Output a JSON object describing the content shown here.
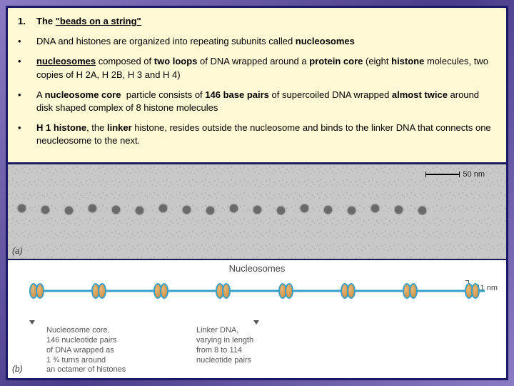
{
  "title": {
    "number": "1.",
    "prefix": "The ",
    "quoted": "\"beads on a string\""
  },
  "bullets": [
    {
      "html": "DNA and histones are organized into repeating subunits called <span class='b'>nucleosomes</span>"
    },
    {
      "html": "<span class='b u'>nucleosomes</span> composed of <span class='b'>two loops</span> of DNA wrapped around a <span class='b'>protein core</span> (eight <span class='b'>histone</span> molecules, two copies of H 2A, H 2B, H 3 and H 4)"
    },
    {
      "html": "A <span class='b'>nucleosome core</span>&nbsp;&nbsp;particle consists of <span class='b'>146 base pairs</span> of supercoiled DNA wrapped <span class='b'>almost twice</span> around disk shaped complex of 8 histone molecules"
    },
    {
      "html": "<span class='b'>H 1 histone</span>, the <span class='b'>linker</span> histone, resides outside the nucleosome and binds to the linker DNA that connects one neucleosome to the next."
    }
  ],
  "micrograph": {
    "scale_label": "50 nm",
    "panel_label": "(a)",
    "bead_count": 18
  },
  "diagram": {
    "title": "Nucleosomes",
    "size_label": "~11 nm",
    "panel_label": "(b)",
    "nucleosome_count": 8,
    "caption_left": "Nucleosome core,\n146 nucleotide pairs\nof DNA wrapped as\n1 ¾ turns around\nan octamer of histones",
    "caption_right": "Linker DNA,\nvarying in length\nfrom 8 to 114\nnucleotide pairs"
  },
  "colors": {
    "panel_bg": "#fff9d6",
    "border": "#1a1a5e",
    "dna": "#3aa0c8",
    "histone": "#c88838"
  }
}
